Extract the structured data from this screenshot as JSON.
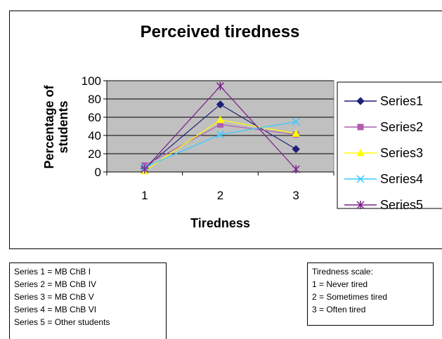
{
  "chart_data": {
    "type": "line",
    "title": "Perceived tiredness",
    "xlabel": "Tiredness",
    "ylabel": "Percentage of students",
    "ylabel_lines": [
      "Percentage of",
      "students"
    ],
    "categories": [
      "1",
      "2",
      "3"
    ],
    "ylim": [
      0,
      100
    ],
    "yticks": [
      "0",
      "20",
      "40",
      "60",
      "80",
      "100"
    ],
    "grid": true,
    "legend_position": "right",
    "series": [
      {
        "name": "Series1",
        "color": "#1f1f7a",
        "marker": "diamond",
        "values": [
          4,
          74,
          25
        ]
      },
      {
        "name": "Series2",
        "color": "#b05cb0",
        "marker": "square",
        "values": [
          7,
          52,
          41
        ]
      },
      {
        "name": "Series3",
        "color": "#ffff00",
        "marker": "triangle",
        "values": [
          1,
          57,
          42
        ]
      },
      {
        "name": "Series4",
        "color": "#33ccff",
        "marker": "x",
        "values": [
          5,
          41,
          55
        ]
      },
      {
        "name": "Series5",
        "color": "#7a1f8a",
        "marker": "star",
        "values": [
          3,
          94,
          3
        ]
      }
    ],
    "plot_background": "#c0c0c0"
  },
  "notes": {
    "series_key": [
      "Series 1 = MB ChB I",
      "Series 2 = MB ChB IV",
      "Series 3 = MB ChB V",
      "Series 4 = MB ChB VI",
      "Series 5 = Other students"
    ],
    "scale_title": "Tiredness scale:",
    "scale_items": [
      "1 = Never tired",
      "2 = Sometimes tired",
      "3 = Often tired"
    ]
  }
}
